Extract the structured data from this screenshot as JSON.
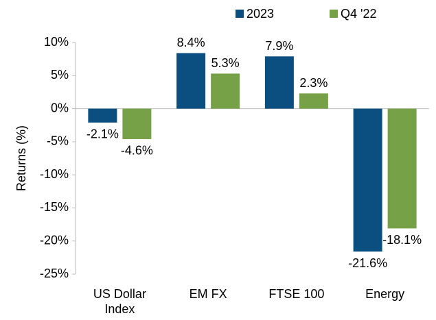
{
  "chart_data": {
    "type": "bar",
    "y_label": "Returns (%)",
    "categories": [
      "US Dollar Index",
      "EM FX",
      "FTSE 100",
      "Energy"
    ],
    "series": [
      {
        "name": "2023",
        "color": "#0b4f81",
        "values": [
          -2.1,
          8.4,
          7.9,
          -21.6
        ],
        "value_labels": [
          "-2.1%",
          "8.4%",
          "7.9%",
          "-21.6%"
        ]
      },
      {
        "name": "Q4 '22",
        "color": "#77a147",
        "values": [
          -4.6,
          5.3,
          2.3,
          -18.1
        ],
        "value_labels": [
          "-4.6%",
          "5.3%",
          "2.3%",
          "-18.1%"
        ]
      }
    ],
    "ylim": [
      -25,
      10
    ],
    "yticks": [
      {
        "value": 10,
        "label": "10%"
      },
      {
        "value": 5,
        "label": "5%"
      },
      {
        "value": 0,
        "label": "0%"
      },
      {
        "value": -5,
        "label": "-5%"
      },
      {
        "value": -10,
        "label": "-10%"
      },
      {
        "value": -15,
        "label": "-15%"
      },
      {
        "value": -20,
        "label": "-20%"
      },
      {
        "value": -25,
        "label": "-25%"
      }
    ],
    "grid": false,
    "legend": "top"
  }
}
